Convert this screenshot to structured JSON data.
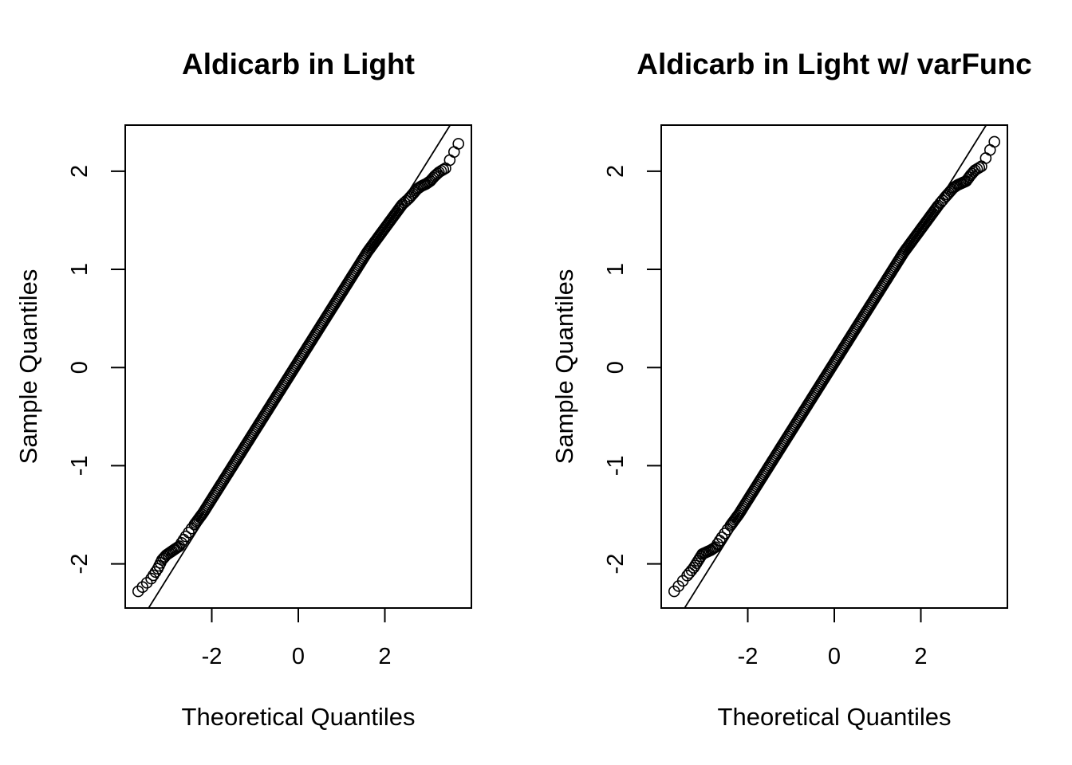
{
  "chart_data": [
    {
      "type": "scatter",
      "title": "Aldicarb in Light",
      "xlabel": "Theoretical Quantiles",
      "ylabel": "Sample Quantiles",
      "xlim": [
        -4.0,
        4.0
      ],
      "ylim": [
        -2.45,
        2.47
      ],
      "xticks": [
        -2,
        0,
        2
      ],
      "xtick_labels": [
        "-2",
        "0",
        "2"
      ],
      "yticks": [
        -2,
        -1,
        0,
        1,
        2
      ],
      "ytick_labels": [
        "-2",
        "-1",
        "0",
        "1",
        "2"
      ],
      "grid": false,
      "reference_line": {
        "x": [
          -3.46,
          3.51
        ],
        "y": [
          -2.45,
          2.47
        ]
      },
      "points": {
        "x": [
          -3.7,
          -3.4,
          -3.25,
          -3.15,
          -3.05,
          -2.95,
          -2.85,
          -2.75,
          -2.6,
          -2.4,
          -2.2,
          -2.0,
          -1.8,
          -1.6,
          -1.4,
          -1.2,
          -1.0,
          -0.8,
          -0.6,
          -0.4,
          -0.2,
          0.0,
          0.2,
          0.4,
          0.6,
          0.8,
          1.0,
          1.2,
          1.4,
          1.6,
          1.8,
          2.0,
          2.2,
          2.4,
          2.55,
          2.65,
          2.75,
          2.85,
          2.95,
          3.05,
          3.15,
          3.25,
          3.4,
          3.7
        ],
        "y": [
          -2.28,
          -2.15,
          -2.05,
          -1.96,
          -1.91,
          -1.88,
          -1.85,
          -1.82,
          -1.72,
          -1.6,
          -1.48,
          -1.34,
          -1.2,
          -1.06,
          -0.92,
          -0.78,
          -0.64,
          -0.5,
          -0.36,
          -0.22,
          -0.08,
          0.06,
          0.2,
          0.34,
          0.48,
          0.62,
          0.76,
          0.9,
          1.04,
          1.18,
          1.3,
          1.42,
          1.54,
          1.66,
          1.72,
          1.77,
          1.82,
          1.85,
          1.87,
          1.9,
          1.95,
          1.99,
          2.03,
          2.28
        ]
      }
    },
    {
      "type": "scatter",
      "title": "Aldicarb in Light w/ varFunc",
      "xlabel": "Theoretical Quantiles",
      "ylabel": "Sample Quantiles",
      "xlim": [
        -4.0,
        4.0
      ],
      "ylim": [
        -2.45,
        2.47
      ],
      "xticks": [
        -2,
        0,
        2
      ],
      "xtick_labels": [
        "-2",
        "0",
        "2"
      ],
      "yticks": [
        -2,
        -1,
        0,
        1,
        2
      ],
      "ytick_labels": [
        "-2",
        "-1",
        "0",
        "1",
        "2"
      ],
      "grid": false,
      "reference_line": {
        "x": [
          -3.46,
          3.51
        ],
        "y": [
          -2.45,
          2.47
        ]
      },
      "points": {
        "x": [
          -3.7,
          -3.4,
          -3.25,
          -3.15,
          -3.05,
          -2.95,
          -2.85,
          -2.75,
          -2.6,
          -2.4,
          -2.2,
          -2.0,
          -1.8,
          -1.6,
          -1.4,
          -1.2,
          -1.0,
          -0.8,
          -0.6,
          -0.4,
          -0.2,
          0.0,
          0.2,
          0.4,
          0.6,
          0.8,
          1.0,
          1.2,
          1.4,
          1.6,
          1.8,
          2.0,
          2.2,
          2.4,
          2.55,
          2.65,
          2.75,
          2.85,
          2.95,
          3.05,
          3.15,
          3.25,
          3.4,
          3.7
        ],
        "y": [
          -2.28,
          -2.12,
          -2.04,
          -1.97,
          -1.9,
          -1.88,
          -1.86,
          -1.83,
          -1.73,
          -1.61,
          -1.49,
          -1.35,
          -1.21,
          -1.07,
          -0.93,
          -0.79,
          -0.65,
          -0.51,
          -0.37,
          -0.23,
          -0.09,
          0.05,
          0.19,
          0.33,
          0.47,
          0.61,
          0.75,
          0.89,
          1.03,
          1.17,
          1.29,
          1.41,
          1.53,
          1.65,
          1.73,
          1.78,
          1.83,
          1.86,
          1.88,
          1.9,
          1.96,
          2.01,
          2.05,
          2.3
        ]
      }
    }
  ]
}
